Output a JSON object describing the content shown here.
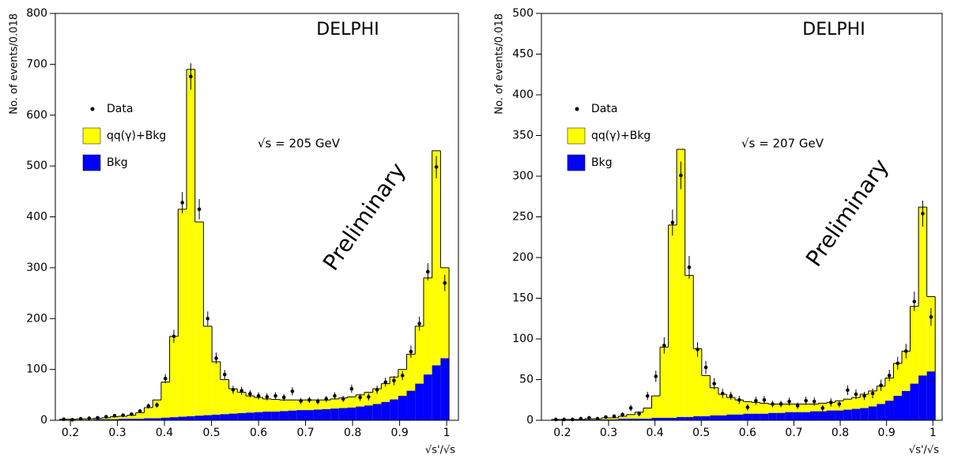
{
  "chart_data": [
    {
      "type": "histogram",
      "annotation": "DELPHI",
      "energy_label": "√s = 205 GeV",
      "watermark": "Preliminary",
      "xlabel": "√s'/√s",
      "ylabel": "No. of events/0.018",
      "bins": [
        0.177,
        0.195,
        0.213,
        0.231,
        0.249,
        0.267,
        0.285,
        0.303,
        0.321,
        0.339,
        0.357,
        0.375,
        0.393,
        0.411,
        0.429,
        0.447,
        0.465,
        0.483,
        0.501,
        0.519,
        0.537,
        0.555,
        0.573,
        0.591,
        0.609,
        0.627,
        0.645,
        0.663,
        0.681,
        0.699,
        0.717,
        0.735,
        0.753,
        0.771,
        0.789,
        0.807,
        0.825,
        0.843,
        0.861,
        0.879,
        0.897,
        0.915,
        0.933,
        0.951,
        0.969,
        0.987,
        1.005
      ],
      "series": [
        {
          "name": "Data",
          "color": "#000000",
          "values": [
            2,
            1,
            3,
            4,
            5,
            7,
            9,
            10,
            12,
            18,
            28,
            30,
            82,
            165,
            428,
            676,
            415,
            200,
            122,
            90,
            60,
            58,
            52,
            48,
            46,
            48,
            45,
            57,
            38,
            40,
            37,
            42,
            48,
            42,
            62,
            45,
            46,
            60,
            75,
            78,
            88,
            135,
            190,
            292,
            498,
            270
          ],
          "errors": [
            1,
            1,
            2,
            2,
            2,
            3,
            3,
            3,
            3,
            4,
            5,
            5,
            9,
            13,
            21,
            26,
            20,
            14,
            11,
            9,
            8,
            8,
            7,
            7,
            7,
            7,
            7,
            8,
            6,
            6,
            6,
            6,
            7,
            6,
            8,
            7,
            7,
            8,
            9,
            9,
            9,
            12,
            14,
            17,
            22,
            16
          ]
        },
        {
          "name": "qq(γ)+Bkg",
          "color": "#ffff00",
          "values": [
            2,
            2,
            3,
            3,
            4,
            5,
            7,
            8,
            10,
            15,
            25,
            40,
            75,
            165,
            415,
            690,
            390,
            185,
            115,
            80,
            62,
            55,
            48,
            45,
            42,
            41,
            40,
            40,
            40,
            40,
            40,
            40,
            42,
            44,
            46,
            50,
            55,
            62,
            72,
            85,
            100,
            130,
            185,
            280,
            530,
            300
          ]
        },
        {
          "name": "Bkg",
          "color": "#0000ff",
          "values": [
            1,
            1,
            1,
            1,
            2,
            2,
            2,
            3,
            3,
            3,
            4,
            4,
            5,
            6,
            7,
            8,
            9,
            10,
            11,
            12,
            13,
            14,
            15,
            16,
            17,
            17,
            18,
            19,
            20,
            20,
            21,
            22,
            23,
            24,
            25,
            27,
            29,
            32,
            36,
            41,
            48,
            58,
            72,
            90,
            108,
            122
          ]
        }
      ],
      "xlim": [
        0.168,
        1.025
      ],
      "xticks": [
        0.2,
        0.3,
        0.4,
        0.5,
        0.6,
        0.7,
        0.8,
        0.9,
        1
      ],
      "ylim": [
        0,
        800
      ],
      "yticks": [
        0,
        100,
        200,
        300,
        400,
        500,
        600,
        700,
        800
      ]
    },
    {
      "type": "histogram",
      "annotation": "DELPHI",
      "energy_label": "√s = 207 GeV",
      "watermark": "Preliminary",
      "xlabel": "√s'/√s",
      "ylabel": "No. of events/0.018",
      "bins": [
        0.177,
        0.195,
        0.213,
        0.231,
        0.249,
        0.267,
        0.285,
        0.303,
        0.321,
        0.339,
        0.357,
        0.375,
        0.393,
        0.411,
        0.429,
        0.447,
        0.465,
        0.483,
        0.501,
        0.519,
        0.537,
        0.555,
        0.573,
        0.591,
        0.609,
        0.627,
        0.645,
        0.663,
        0.681,
        0.699,
        0.717,
        0.735,
        0.753,
        0.771,
        0.789,
        0.807,
        0.825,
        0.843,
        0.861,
        0.879,
        0.897,
        0.915,
        0.933,
        0.951,
        0.969,
        0.987,
        1.005
      ],
      "series": [
        {
          "name": "Data",
          "color": "#000000",
          "values": [
            1,
            1,
            1,
            2,
            3,
            2,
            4,
            5,
            7,
            15,
            8,
            30,
            54,
            92,
            243,
            301,
            188,
            87,
            65,
            45,
            33,
            30,
            25,
            16,
            24,
            25,
            20,
            20,
            23,
            18,
            24,
            23,
            15,
            22,
            20,
            37,
            32,
            30,
            33,
            43,
            55,
            70,
            85,
            146,
            254,
            127
          ],
          "errors": [
            1,
            1,
            1,
            1,
            2,
            1,
            2,
            2,
            3,
            4,
            3,
            5,
            7,
            10,
            16,
            17,
            14,
            9,
            8,
            7,
            6,
            5,
            5,
            4,
            5,
            5,
            4,
            4,
            5,
            4,
            5,
            5,
            4,
            5,
            4,
            6,
            6,
            5,
            6,
            7,
            7,
            8,
            9,
            12,
            16,
            11
          ]
        },
        {
          "name": "qq(γ)+Bkg",
          "color": "#ffff00",
          "values": [
            1,
            1,
            1,
            1,
            2,
            2,
            3,
            3,
            5,
            7,
            10,
            15,
            30,
            90,
            240,
            333,
            178,
            88,
            55,
            40,
            32,
            28,
            25,
            23,
            22,
            21,
            20,
            20,
            20,
            20,
            20,
            20,
            21,
            22,
            24,
            26,
            28,
            32,
            36,
            42,
            52,
            70,
            85,
            140,
            262,
            152
          ]
        },
        {
          "name": "Bkg",
          "color": "#0000ff",
          "values": [
            0,
            0,
            0,
            1,
            1,
            1,
            1,
            1,
            2,
            2,
            2,
            2,
            3,
            3,
            3,
            4,
            4,
            5,
            5,
            6,
            6,
            7,
            7,
            8,
            8,
            8,
            9,
            9,
            10,
            10,
            10,
            11,
            11,
            12,
            12,
            13,
            14,
            15,
            17,
            20,
            24,
            30,
            36,
            45,
            55,
            60
          ]
        }
      ],
      "xlim": [
        0.155,
        1.02
      ],
      "xticks": [
        0.2,
        0.3,
        0.4,
        0.5,
        0.6,
        0.7,
        0.8,
        0.9,
        1
      ],
      "ylim": [
        0,
        500
      ],
      "yticks": [
        0,
        50,
        100,
        150,
        200,
        250,
        300,
        350,
        400,
        450,
        500
      ]
    }
  ]
}
